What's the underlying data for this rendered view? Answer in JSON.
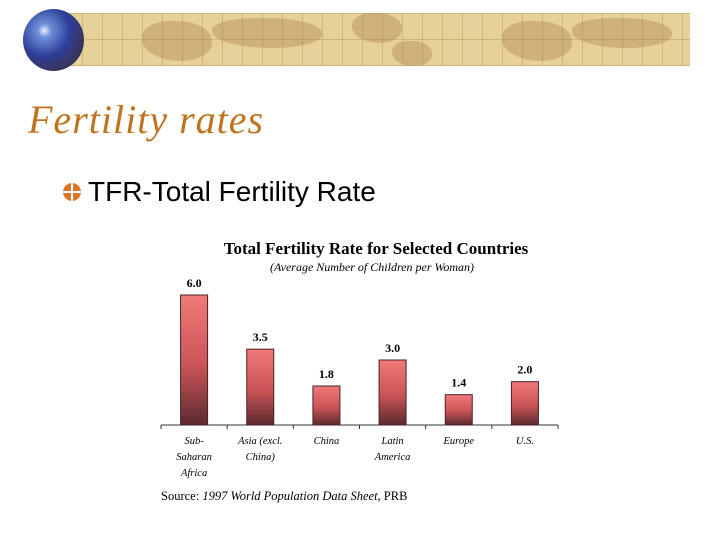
{
  "slide": {
    "title": "Fertility rates",
    "bullet": "TFR-Total Fertility Rate",
    "title_color": "#c0731f",
    "bullet_icon": "crosshair-circle-icon",
    "banner_icon": "globe-icon"
  },
  "chart_data": {
    "type": "bar",
    "title": "Total Fertility Rate for Selected Countries",
    "subtitle": "(Average Number of Children per Woman)",
    "categories": [
      [
        "Sub-",
        "Saharan",
        "Africa"
      ],
      [
        "Asia (excl.",
        "China)"
      ],
      [
        "China"
      ],
      [
        "Latin",
        "America"
      ],
      [
        "Europe"
      ],
      [
        "U.S."
      ]
    ],
    "values": [
      6.0,
      3.5,
      1.8,
      3.0,
      1.4,
      2.0
    ],
    "data_labels": [
      "6.0",
      "3.5",
      "1.8",
      "3.0",
      "1.4",
      "2.0"
    ],
    "ylim": [
      0,
      6.0
    ],
    "grid": false,
    "bar_color": "#e36a6a",
    "source_prefix": "Source: ",
    "source_italic": "1997 World Population Data Sheet",
    "source_suffix": ", PRB"
  }
}
